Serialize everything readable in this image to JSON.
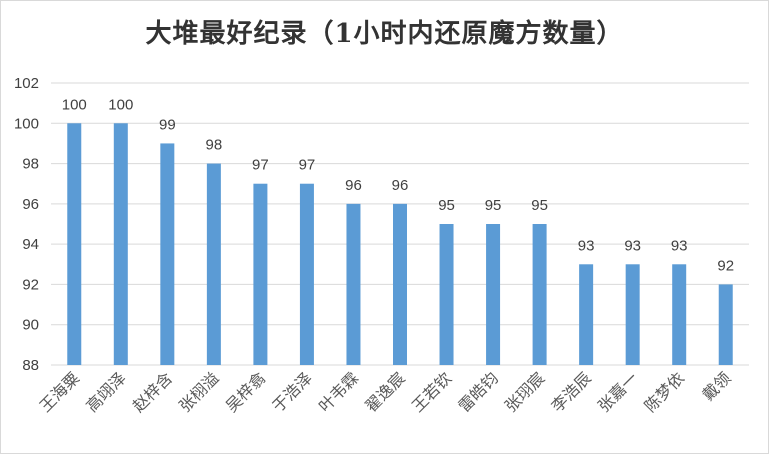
{
  "chart_data": {
    "type": "bar",
    "title": "大堆最好纪录（1小时内还原魔方数量）",
    "categories": [
      "王海粟",
      "高翊泽",
      "赵梓含",
      "张栩溢",
      "吴梓翕",
      "于浩泽",
      "叶韦霖",
      "翟逸宸",
      "王若钦",
      "雷皓钧",
      "张珝宸",
      "李浩辰",
      "张嘉一",
      "陈梦依",
      "戴领"
    ],
    "values": [
      100,
      100,
      99,
      98,
      97,
      97,
      96,
      96,
      95,
      95,
      95,
      93,
      93,
      93,
      92
    ],
    "value_labels": [
      "100",
      "100",
      "99",
      "98",
      "97",
      "97",
      "96",
      "96",
      "95",
      "95",
      "95",
      "93",
      "93",
      "93",
      "92"
    ],
    "ylim": [
      88,
      102
    ],
    "yticks": [
      "88",
      "90",
      "92",
      "94",
      "96",
      "98",
      "100",
      "102"
    ],
    "grid": true,
    "bar_color": "#5b9bd5"
  }
}
